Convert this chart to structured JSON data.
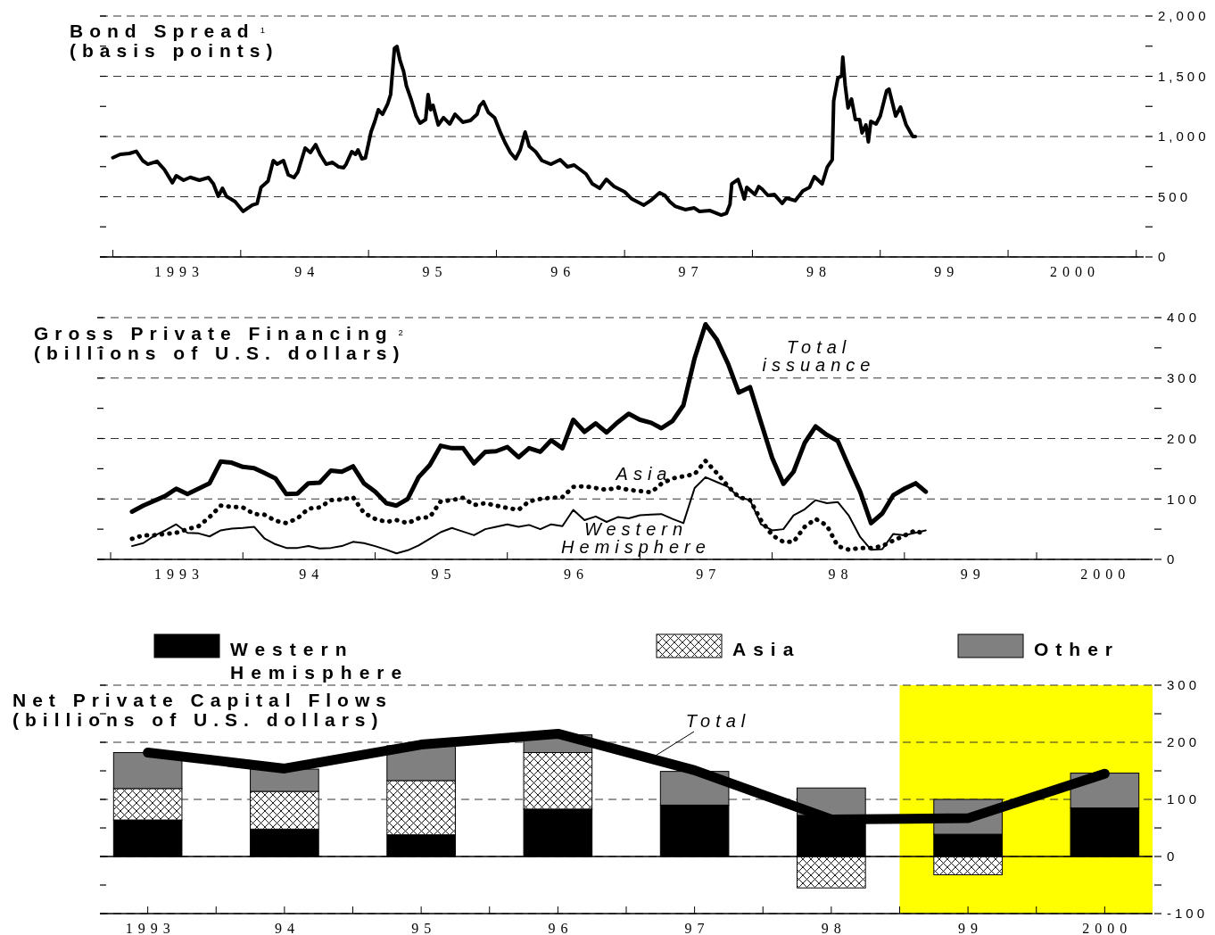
{
  "chart_data": [
    {
      "type": "line",
      "title": "Bond Spread$^{1}$",
      "subtitle": "(basis points)",
      "color": "#000000",
      "x": [
        "1993-01-01",
        "1993-01-22",
        "1993-02-17",
        "1993-03-09",
        "1993-03-27",
        "1993-04-11",
        "1993-05-07",
        "1993-05-28",
        "1993-06-20",
        "1993-07-01",
        "1993-07-22",
        "1993-08-10",
        "1993-09-05",
        "1993-10-01",
        "1993-10-15",
        "1993-10-29",
        "1993-11-10",
        "1993-11-21",
        "1993-12-16",
        "1994-01-08",
        "1994-02-03",
        "1994-02-17",
        "1994-02-28",
        "1994-03-20",
        "1994-04-04",
        "1994-04-15",
        "1994-05-03",
        "1994-05-17",
        "1994-06-02",
        "1994-06-13",
        "1994-07-04",
        "1994-07-19",
        "1994-08-03",
        "1994-08-17",
        "1994-09-02",
        "1994-09-20",
        "1994-10-08",
        "1994-10-22",
        "1994-10-29",
        "1994-11-14",
        "1994-11-25",
        "1994-12-02",
        "1994-12-13",
        "1994-12-23",
        "1995-01-08",
        "1995-01-19",
        "1995-01-29",
        "1995-02-10",
        "1995-02-25",
        "1995-03-05",
        "1995-03-16",
        "1995-03-23",
        "1995-04-01",
        "1995-04-11",
        "1995-04-19",
        "1995-05-03",
        "1995-05-17",
        "1995-05-28",
        "1995-06-13",
        "1995-06-20",
        "1995-06-27",
        "1995-07-04",
        "1995-07-19",
        "1995-08-03",
        "1995-08-21",
        "1995-09-05",
        "1995-09-27",
        "1995-10-19",
        "1995-11-07",
        "1995-11-14",
        "1995-11-25",
        "1995-12-09",
        "1995-12-27",
        "1996-01-11",
        "1996-01-26",
        "1996-02-10",
        "1996-02-25",
        "1996-03-09",
        "1996-03-23",
        "1996-04-04",
        "1996-04-22",
        "1996-05-10",
        "1996-06-05",
        "1996-07-01",
        "1996-07-22",
        "1996-08-10",
        "1996-09-13",
        "1996-10-01",
        "1996-10-22",
        "1996-11-10",
        "1996-12-02",
        "1997-01-01",
        "1997-01-22",
        "1997-02-25",
        "1997-03-16",
        "1997-04-11",
        "1997-04-26",
        "1997-05-10",
        "1997-05-25",
        "1997-06-23",
        "1997-07-19",
        "1997-08-03",
        "1997-09-02",
        "1997-10-04",
        "1997-10-19",
        "1997-10-29",
        "1997-11-03",
        "1997-11-21",
        "1997-12-02",
        "1997-12-09",
        "1997-12-16",
        "1998-01-08",
        "1998-01-19",
        "1998-01-29",
        "1998-02-14",
        "1998-03-05",
        "1998-03-27",
        "1998-04-08",
        "1998-05-03",
        "1998-05-25",
        "1998-06-13",
        "1998-06-27",
        "1998-07-19",
        "1998-08-03",
        "1998-08-17",
        "1998-08-21",
        "1998-09-02",
        "1998-09-13",
        "1998-09-16",
        "1998-09-23",
        "1998-10-01",
        "1998-10-11",
        "1998-10-22",
        "1998-11-03",
        "1998-11-10",
        "1998-11-21",
        "1998-11-28",
        "1998-12-05",
        "1998-12-20",
        "1999-01-01",
        "1999-01-19",
        "1999-01-26",
        "1999-02-14",
        "1999-02-28",
        "1999-03-16",
        "1999-04-04",
        "1999-04-11"
      ],
      "values": [
        824,
        852,
        859,
        877,
        800,
        770,
        794,
        726,
        616,
        674,
        637,
        661,
        637,
        659,
        607,
        504,
        570,
        504,
        459,
        378,
        430,
        444,
        578,
        630,
        800,
        770,
        800,
        681,
        659,
        704,
        904,
        867,
        933,
        844,
        770,
        785,
        748,
        741,
        770,
        874,
        852,
        889,
        815,
        822,
        1037,
        1126,
        1222,
        1185,
        1274,
        1348,
        1733,
        1748,
        1630,
        1541,
        1422,
        1304,
        1170,
        1111,
        1141,
        1348,
        1222,
        1259,
        1096,
        1156,
        1104,
        1185,
        1119,
        1133,
        1185,
        1252,
        1289,
        1200,
        1156,
        1044,
        948,
        867,
        815,
        889,
        1037,
        918,
        874,
        800,
        770,
        807,
        748,
        763,
        689,
        607,
        570,
        644,
        585,
        541,
        481,
        430,
        467,
        533,
        511,
        459,
        422,
        393,
        407,
        378,
        385,
        348,
        363,
        437,
        607,
        644,
        548,
        481,
        578,
        518,
        585,
        563,
        511,
        518,
        444,
        489,
        467,
        548,
        578,
        667,
        607,
        748,
        807,
        1296,
        1485,
        1504,
        1659,
        1422,
        1237,
        1311,
        1141,
        1141,
        1030,
        1096,
        956,
        1126,
        1104,
        1170,
        1378,
        1393,
        1170,
        1244,
        1096,
        1000,
        1000
      ],
      "xlim": [
        "1992-11-25",
        "2001-01-22"
      ],
      "xticks": [
        {
          "value": "1993-01-01",
          "label": null
        },
        {
          "value": "1993-07-02",
          "label": "1993"
        },
        {
          "value": "1994-01-01",
          "label": null
        },
        {
          "value": "1994-07-02",
          "label": "94"
        },
        {
          "value": "1995-01-01",
          "label": null
        },
        {
          "value": "1995-07-02",
          "label": "95"
        },
        {
          "value": "1996-01-01",
          "label": null
        },
        {
          "value": "1996-07-02",
          "label": "96"
        },
        {
          "value": "1997-01-01",
          "label": null
        },
        {
          "value": "1997-07-02",
          "label": "97"
        },
        {
          "value": "1998-01-01",
          "label": null
        },
        {
          "value": "1998-07-02",
          "label": "98"
        },
        {
          "value": "1999-01-01",
          "label": null
        },
        {
          "value": "1999-07-02",
          "label": "99"
        },
        {
          "value": "2000-01-01",
          "label": null
        },
        {
          "value": "2000-07-02",
          "label": "2000"
        },
        {
          "value": "2001-01-01",
          "label": null
        }
      ],
      "ylim": [
        0,
        2000
      ],
      "yticks": [
        0,
        {
          "value": 250,
          "label": null
        },
        500,
        {
          "value": 750,
          "label": null
        },
        {
          "value": 1000,
          "label": "1,000"
        },
        {
          "value": 1250,
          "label": null
        },
        {
          "value": 1500,
          "label": "1,500"
        },
        {
          "value": 1750,
          "label": null
        },
        {
          "value": 2000,
          "label": "2,000"
        }
      ],
      "grid": "y"
    },
    {
      "type": "line",
      "title": "Gross Private Financing$^{2}$",
      "subtitle": "(billions of U.S. dollars)",
      "series": [
        {
          "name": "Total issuance",
          "color": "#000000",
          "x": [
            "1993-03",
            "1993-04",
            "1993-06",
            "1993-07",
            "1993-08",
            "1993-10",
            "1993-11",
            "1993-12",
            "1994-01",
            "1994-02",
            "1994-03",
            "1994-04",
            "1994-05",
            "1994-06",
            "1994-07",
            "1994-08",
            "1994-09",
            "1994-10",
            "1994-11",
            "1994-12",
            "1995-01",
            "1995-02",
            "1995-03",
            "1995-04",
            "1995-05",
            "1995-06",
            "1995-07",
            "1995-08",
            "1995-09",
            "1995-10",
            "1995-11",
            "1995-12",
            "1996-01",
            "1996-02",
            "1996-03",
            "1996-04",
            "1996-05",
            "1996-06",
            "1996-07",
            "1996-08",
            "1996-09",
            "1996-10",
            "1996-11",
            "1996-12",
            "1997-01",
            "1997-02",
            "1997-03",
            "1997-04",
            "1997-05",
            "1997-06",
            "1997-07",
            "1997-08",
            "1997-09",
            "1997-10",
            "1997-11",
            "1997-12",
            "1998-01",
            "1998-02",
            "1998-03",
            "1998-04",
            "1998-05",
            "1998-06",
            "1998-07",
            "1998-08",
            "1998-09",
            "1998-10",
            "1998-11",
            "1998-12",
            "1999-01",
            "1999-02",
            "1999-03"
          ],
          "values": [
            79,
            89,
            105,
            117,
            108,
            126,
            162,
            160,
            153,
            151,
            143,
            134,
            108,
            109,
            126,
            127,
            147,
            145,
            154,
            126,
            112,
            93,
            89,
            100,
            136,
            156,
            188,
            184,
            184,
            159,
            178,
            179,
            186,
            169,
            184,
            178,
            197,
            184,
            231,
            211,
            225,
            210,
            227,
            241,
            231,
            226,
            217,
            229,
            255,
            333,
            389,
            364,
            324,
            276,
            285,
            227,
            168,
            125,
            145,
            193,
            220,
            206,
            196,
            153,
            112,
            60,
            76,
            106,
            117,
            126,
            112
          ]
        },
        {
          "name": "Asia",
          "color": "#000000",
          "line_style": "dotted",
          "x": [
            "1993-03",
            "1993-04",
            "1993-05",
            "1993-06",
            "1993-07",
            "1993-08",
            "1993-09",
            "1993-10",
            "1993-11",
            "1993-12",
            "1994-01",
            "1994-02",
            "1994-03",
            "1994-04",
            "1994-05",
            "1994-06",
            "1994-07",
            "1994-08",
            "1994-09",
            "1994-10",
            "1994-11",
            "1994-12",
            "1995-01",
            "1995-02",
            "1995-03",
            "1995-04",
            "1995-05",
            "1995-06",
            "1995-07",
            "1995-08",
            "1995-09",
            "1995-10",
            "1995-11",
            "1995-12",
            "1996-01",
            "1996-02",
            "1996-03",
            "1996-04",
            "1996-05",
            "1996-06",
            "1996-07",
            "1996-08",
            "1996-09",
            "1996-10",
            "1996-11",
            "1996-12",
            "1997-02",
            "1997-03",
            "1997-04",
            "1997-06",
            "1997-07",
            "1997-08",
            "1997-09",
            "1997-10",
            "1997-11",
            "1997-12",
            "1998-01",
            "1998-02",
            "1998-03",
            "1998-04",
            "1998-05",
            "1998-06",
            "1998-07",
            "1998-08",
            "1998-09",
            "1998-10",
            "1998-11",
            "1998-12",
            "1999-02",
            "1999-03"
          ],
          "values": [
            34,
            40,
            40,
            42,
            44,
            50,
            55,
            70,
            89,
            87,
            86,
            75,
            74,
            64,
            60,
            68,
            84,
            86,
            98,
            99,
            103,
            77,
            67,
            62,
            65,
            60,
            68,
            70,
            96,
            98,
            102,
            90,
            93,
            89,
            85,
            82,
            96,
            100,
            102,
            103,
            120,
            121,
            118,
            115,
            119,
            115,
            111,
            125,
            134,
            141,
            163,
            143,
            121,
            103,
            98,
            65,
            40,
            29,
            29,
            54,
            67,
            56,
            22,
            16,
            19,
            19,
            22,
            31,
            48,
            40
          ]
        },
        {
          "name": "Western Hemisphere",
          "color": "#000000",
          "x": [
            "1993-03",
            "1993-04",
            "1993-05",
            "1993-06",
            "1993-07",
            "1993-08",
            "1993-09",
            "1993-10",
            "1993-11",
            "1993-12",
            "1994-01",
            "1994-02",
            "1994-03",
            "1994-04",
            "1994-05",
            "1994-06",
            "1994-07",
            "1994-08",
            "1994-09",
            "1994-10",
            "1994-11",
            "1994-12",
            "1995-01",
            "1995-02",
            "1995-03",
            "1995-04",
            "1995-05",
            "1995-06",
            "1995-07",
            "1995-08",
            "1995-09",
            "1995-10",
            "1995-11",
            "1995-12",
            "1996-01",
            "1996-02",
            "1996-03",
            "1996-04",
            "1996-05",
            "1996-06",
            "1996-07",
            "1996-08",
            "1996-09",
            "1996-10",
            "1996-11",
            "1996-12",
            "1997-01",
            "1997-02",
            "1997-03",
            "1997-04",
            "1997-05",
            "1997-06",
            "1997-07",
            "1997-08",
            "1997-09",
            "1997-10",
            "1997-11",
            "1997-12",
            "1998-01",
            "1998-02",
            "1998-03",
            "1998-04",
            "1998-05",
            "1998-06",
            "1998-07",
            "1998-08",
            "1998-09",
            "1998-10",
            "1998-11",
            "1998-12",
            "1999-01",
            "1999-03"
          ],
          "values": [
            22,
            27,
            39,
            48,
            58,
            44,
            43,
            38,
            48,
            51,
            52,
            54,
            35,
            25,
            19,
            19,
            22,
            18,
            19,
            22,
            29,
            27,
            22,
            16,
            10,
            15,
            23,
            34,
            45,
            52,
            46,
            40,
            50,
            54,
            58,
            54,
            57,
            50,
            58,
            55,
            82,
            65,
            71,
            62,
            70,
            68,
            73,
            74,
            75,
            67,
            60,
            118,
            136,
            128,
            120,
            103,
            98,
            58,
            48,
            50,
            73,
            83,
            98,
            93,
            95,
            72,
            37,
            16,
            17,
            42,
            40,
            48
          ]
        }
      ],
      "xlim": [
        "1992-11-25",
        "2000-11-16"
      ],
      "xticks": [
        {
          "value": "1993-01-01",
          "label": null
        },
        {
          "value": "1993-07-02",
          "label": "1993"
        },
        {
          "value": "1994-01-01",
          "label": null
        },
        {
          "value": "1994-07-02",
          "label": "94"
        },
        {
          "value": "1995-01-01",
          "label": null
        },
        {
          "value": "1995-07-02",
          "label": "95"
        },
        {
          "value": "1996-01-01",
          "label": null
        },
        {
          "value": "1996-07-02",
          "label": "96"
        },
        {
          "value": "1997-01-01",
          "label": null
        },
        {
          "value": "1997-07-02",
          "label": "97"
        },
        {
          "value": "1998-01-01",
          "label": null
        },
        {
          "value": "1998-07-02",
          "label": "98"
        },
        {
          "value": "1999-01-01",
          "label": null
        },
        {
          "value": "1999-07-02",
          "label": "99"
        },
        {
          "value": "2000-01-01",
          "label": null
        },
        {
          "value": "2000-07-02",
          "label": "2000"
        }
      ],
      "ylim": [
        0,
        400
      ],
      "yticks": [
        0,
        {
          "value": 50,
          "label": null
        },
        100,
        {
          "value": 150,
          "label": null
        },
        200,
        {
          "value": 250,
          "label": null
        },
        300,
        {
          "value": 350,
          "label": null
        },
        400
      ],
      "grid": "y"
    },
    {
      "type": "bar",
      "title": "Net Private Capital Flows",
      "subtitle": "(billions of U.S. dollars)",
      "categories": [
        "1993",
        "94",
        "95",
        "96",
        "97",
        "98",
        "99",
        "2000"
      ],
      "stacked": true,
      "series": [
        {
          "name": "Western Hemisphere",
          "color": "#000000",
          "values": [
            64,
            48,
            38,
            83,
            90,
            72,
            39,
            85
          ]
        },
        {
          "name": "Asia",
          "color": "#ffffff",
          "values": [
            55,
            66,
            95,
            99,
            0,
            -55,
            -32,
            0
          ]
        },
        {
          "name": "Other",
          "color": "#808080",
          "values": [
            63,
            39,
            61,
            31,
            59,
            48,
            61,
            61
          ]
        },
        {
          "name": "Total",
          "type": "line",
          "color": "#000000",
          "values": [
            182,
            154,
            196,
            215,
            151,
            65,
            67,
            145
          ]
        }
      ],
      "ylim": [
        -100,
        300
      ],
      "yticks": [
        -100,
        {
          "value": -50,
          "label": null
        },
        0,
        {
          "value": 50,
          "label": null
        },
        100,
        {
          "value": 150,
          "label": null
        },
        200,
        {
          "value": 250,
          "label": null
        },
        300
      ],
      "bands": [
        {
          "axis": "x",
          "from": "99",
          "to": "2000",
          "color": "#ffff00"
        }
      ],
      "grid": "y",
      "legend": "top"
    }
  ]
}
